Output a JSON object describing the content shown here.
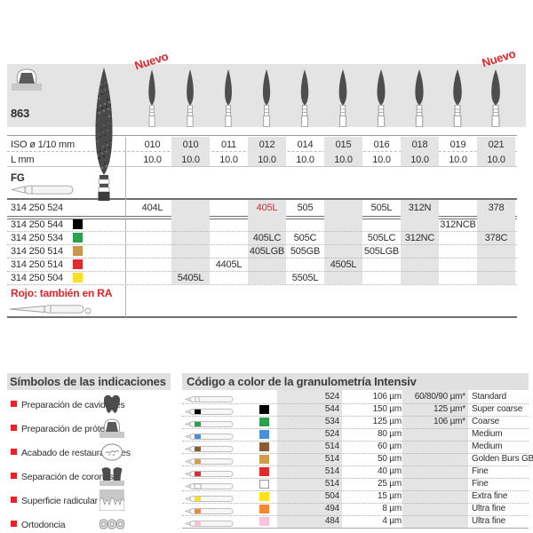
{
  "colors": {
    "accent_red": "#e5232b",
    "band_gray": "#e4e4e4"
  },
  "catalog": {
    "figure_number": "863",
    "new_badge": "Nuevo",
    "iso_row_label": "ISO ø 1/10 mm",
    "length_row_label": "L mm",
    "shank_label": "FG",
    "note_red": "Rojo: también en RA",
    "columns": [
      {
        "iso": "010",
        "l": "10.0"
      },
      {
        "iso": "010",
        "l": "10.0"
      },
      {
        "iso": "011",
        "l": "10.0"
      },
      {
        "iso": "012",
        "l": "10.0"
      },
      {
        "iso": "014",
        "l": "10.0"
      },
      {
        "iso": "015",
        "l": "10.0"
      },
      {
        "iso": "016",
        "l": "10.0"
      },
      {
        "iso": "018",
        "l": "10.0"
      },
      {
        "iso": "019",
        "l": "10.0"
      },
      {
        "iso": "021",
        "l": "10.0"
      }
    ],
    "product_rows": [
      {
        "label": "314 250 524",
        "color": null,
        "red_cell_index": 3,
        "cells": [
          "404L",
          "",
          "",
          "405L",
          "505",
          "",
          "505L",
          "312N",
          "",
          "378"
        ]
      },
      {
        "label": "314 250 544",
        "color": "#000000",
        "red_cell_index": -1,
        "cells": [
          "",
          "",
          "",
          "",
          "",
          "",
          "",
          "",
          "312NCB",
          ""
        ]
      },
      {
        "label": "314 250 534",
        "color": "#2ca04c",
        "red_cell_index": -1,
        "cells": [
          "",
          "",
          "",
          "405LC",
          "505C",
          "",
          "505LC",
          "312NC",
          "",
          "378C"
        ]
      },
      {
        "label": "314 250 514",
        "color": "#c9974c",
        "red_cell_index": -1,
        "cells": [
          "",
          "",
          "",
          "405LGB",
          "505GB",
          "",
          "505LGB",
          "",
          "",
          ""
        ]
      },
      {
        "label": "314 250 514",
        "color": "#e12a2d",
        "red_cell_index": -1,
        "cells": [
          "",
          "",
          "4405L",
          "",
          "",
          "4505L",
          "",
          "",
          "",
          ""
        ]
      },
      {
        "label": "314 250 504",
        "color": "#f6e02b",
        "red_cell_index": -1,
        "cells": [
          "",
          "5405L",
          "",
          "",
          "5505L",
          "",
          "",
          "",
          "",
          ""
        ]
      }
    ]
  },
  "indications": {
    "title": "Símbolos de las indicaciones",
    "items": [
      {
        "label": "Preparación de cavidades",
        "icon": "cavity-prep-icon"
      },
      {
        "label": "Preparación de prótesis",
        "icon": "prosthesis-prep-icon"
      },
      {
        "label": "Acabado de restauraciones",
        "icon": "restoration-finishing-icon"
      },
      {
        "label": "Separación de coronas",
        "icon": "crown-separation-icon"
      },
      {
        "label": "Superficie radicular",
        "icon": "root-surface-icon"
      },
      {
        "label": "Ortodoncia",
        "icon": "orthodontics-icon"
      }
    ]
  },
  "grit_table": {
    "title": "Código a color de la granulometría Intensiv",
    "rows": [
      {
        "color": null,
        "code": "524",
        "size": "106 µm",
        "alt": "60/80/90 µm*",
        "name": "Standard"
      },
      {
        "color": "#000000",
        "code": "544",
        "size": "150 µm",
        "alt": "125 µm*",
        "name": "Super coarse"
      },
      {
        "color": "#2ca04c",
        "code": "534",
        "size": "125 µm",
        "alt": "106 µm*",
        "name": "Coarse"
      },
      {
        "color": "#4a90d9",
        "code": "524",
        "size": "80 µm",
        "alt": "",
        "name": "Medium"
      },
      {
        "color": "#8a5c33",
        "code": "514",
        "size": "60 µm",
        "alt": "",
        "name": "Medium"
      },
      {
        "color": "#cf9d4d",
        "code": "514",
        "size": "50 µm",
        "alt": "",
        "name": "Golden Burs GB"
      },
      {
        "color": "#e12a2d",
        "code": "514",
        "size": "40 µm",
        "alt": "",
        "name": "Fine"
      },
      {
        "color": "#ffffff",
        "code": "514",
        "size": "25 µm",
        "alt": "",
        "name": "Fine"
      },
      {
        "color": "#ffe319",
        "code": "504",
        "size": "15 µm",
        "alt": "",
        "name": "Extra fine"
      },
      {
        "color": "#f58634",
        "code": "494",
        "size": "8 µm",
        "alt": "",
        "name": "Ultra fine"
      },
      {
        "color": "#f7c3d9",
        "code": "484",
        "size": "4 µm",
        "alt": "",
        "name": "Ultra fine"
      }
    ]
  }
}
